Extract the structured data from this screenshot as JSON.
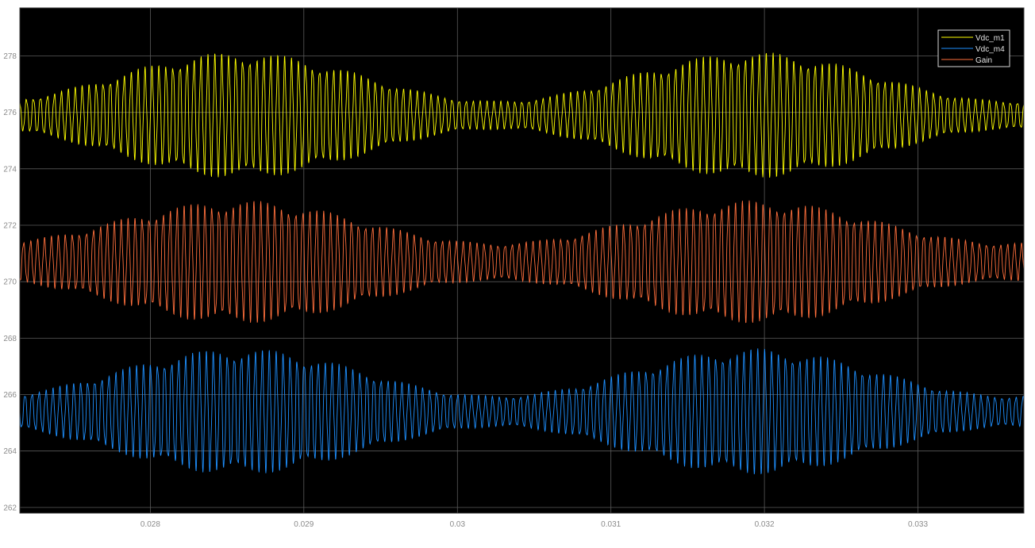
{
  "chart_data": {
    "type": "line",
    "title": "",
    "xlabel": "",
    "ylabel": "",
    "xlim": [
      0.02715,
      0.03369
    ],
    "ylim": [
      261.8,
      279.7
    ],
    "x_ticks": [
      0.028,
      0.029,
      0.03,
      0.031,
      0.032,
      0.033
    ],
    "x_tick_labels": [
      "0.028",
      "0.029",
      "0.03",
      "0.031",
      "0.032",
      "0.033"
    ],
    "y_ticks": [
      262,
      264,
      266,
      268,
      270,
      272,
      274,
      276,
      278
    ],
    "y_tick_labels": [
      "262",
      "264",
      "266",
      "268",
      "270",
      "272",
      "274",
      "276",
      "278"
    ],
    "grid": true,
    "legend_position": "top-right",
    "background_color": "#000000",
    "grid_color": "#5a5a5a",
    "series": [
      {
        "name": "Vdc_m1",
        "color": "#ffff00",
        "center": 275.9,
        "ripple_frequency_hz": 22000,
        "envelope_period_s": 0.00335,
        "envelope_peak_x": [
          0.02858,
          0.03193
        ],
        "amplitude_min": 0.45,
        "amplitude_max": 2.0
      },
      {
        "name": "Vdc_m4",
        "color": "#1e90ff",
        "center": 265.4,
        "ripple_frequency_hz": 22000,
        "envelope_period_s": 0.00335,
        "envelope_peak_x": [
          0.02858,
          0.03193
        ],
        "amplitude_min": 0.5,
        "amplitude_max": 2.0
      },
      {
        "name": "Gain",
        "color": "#ff6f3c",
        "center": 270.7,
        "ripple_frequency_hz": 22000,
        "envelope_period_s": 0.00335,
        "envelope_peak_x": [
          0.02858,
          0.03193
        ],
        "amplitude_min": 0.6,
        "amplitude_max": 1.95
      }
    ]
  }
}
